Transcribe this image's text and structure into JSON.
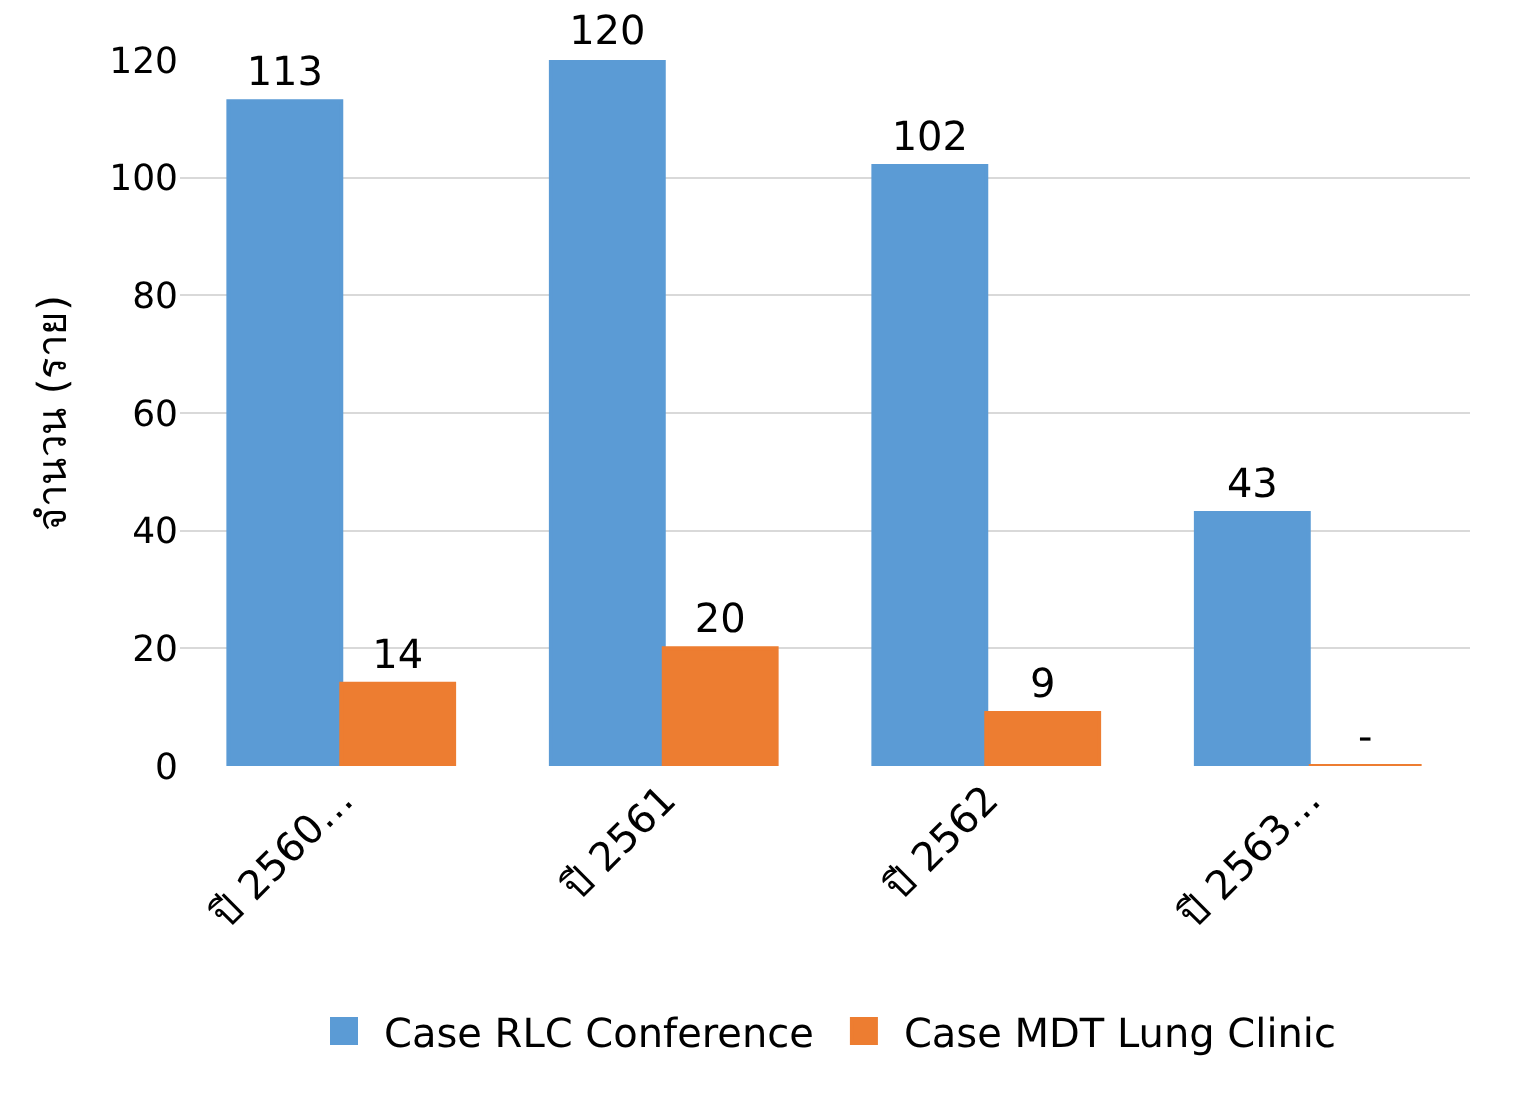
{
  "chart_data": {
    "type": "bar",
    "ylabel": "จำนวน (ราย)",
    "categories": [
      "ปี 2560…",
      "ปี 2561",
      "ปี 2562",
      "ปี 2563…"
    ],
    "series": [
      {
        "name": "Case RLC Conference",
        "color": "#5b9bd5",
        "values": [
          113,
          120,
          102,
          43
        ],
        "value_labels": [
          "113",
          "120",
          "102",
          "43"
        ]
      },
      {
        "name": "Case MDT Lung Clinic",
        "color": "#ed7d31",
        "values": [
          14,
          20,
          9,
          0
        ],
        "value_labels": [
          "14",
          "20",
          "9",
          "-"
        ]
      }
    ],
    "ylim": [
      0,
      120
    ],
    "yticks": [
      0,
      20,
      40,
      60,
      80,
      100,
      120
    ],
    "grid": "y",
    "legend": "bottom"
  }
}
